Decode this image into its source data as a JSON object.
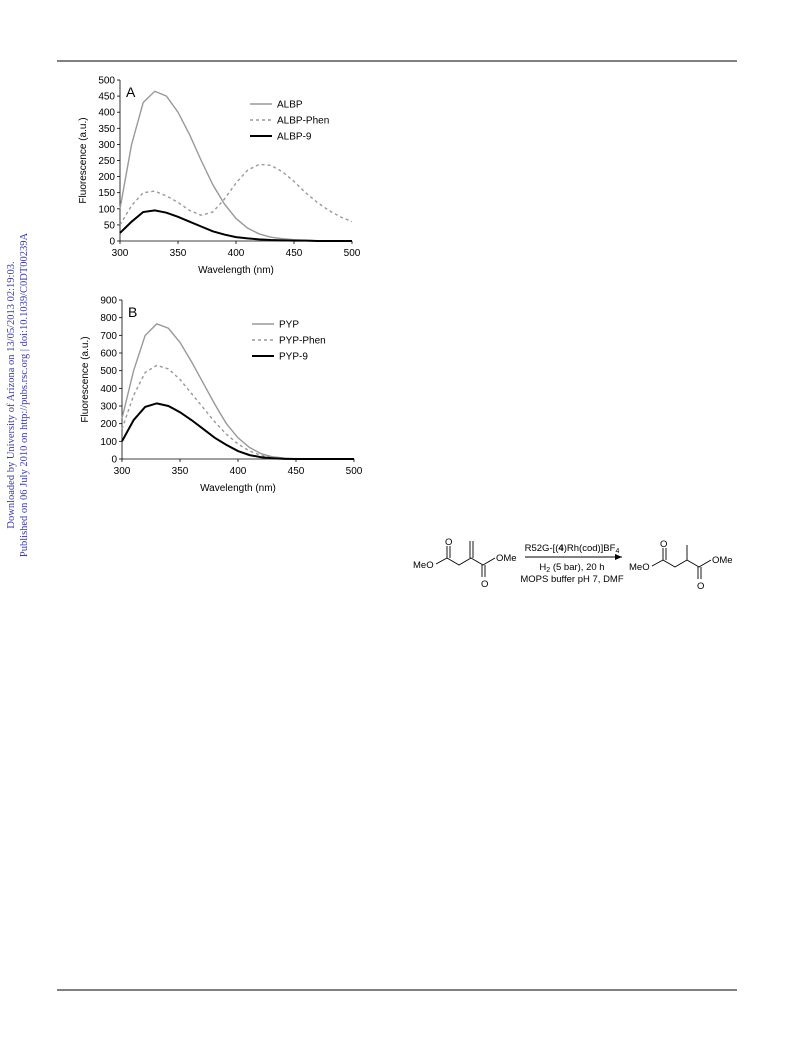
{
  "sidebar": [
    "Downloaded by University of Arizona on 13/05/2013 02:19:03.",
    "Published on 06 July 2010 on http://pubs.rsc.org | doi:10.1039/C0DT00239A"
  ],
  "chart_data": [
    {
      "type": "line",
      "annotation": "A",
      "x_label": "Wavelength (nm)",
      "y_label": "Fluorescence (a.u.)",
      "x": [
        300,
        310,
        320,
        330,
        340,
        350,
        360,
        370,
        380,
        390,
        400,
        410,
        420,
        430,
        440,
        450,
        460,
        470,
        480,
        490,
        500
      ],
      "series": [
        {
          "name": "ALBP",
          "color": "#999999",
          "dash": false,
          "values": [
            100,
            300,
            430,
            465,
            450,
            400,
            330,
            250,
            175,
            115,
            70,
            40,
            22,
            12,
            7,
            4,
            2,
            1,
            1,
            0,
            0
          ]
        },
        {
          "name": "ALBP-Phen",
          "color": "#999999",
          "dash": true,
          "values": [
            50,
            110,
            150,
            155,
            140,
            120,
            95,
            80,
            90,
            130,
            180,
            220,
            238,
            235,
            215,
            185,
            150,
            120,
            95,
            75,
            60
          ]
        },
        {
          "name": "ALBP-9",
          "color": "#000000",
          "dash": false,
          "values": [
            25,
            60,
            90,
            95,
            88,
            75,
            60,
            45,
            30,
            20,
            12,
            8,
            5,
            3,
            2,
            1,
            1,
            0,
            0,
            0,
            0
          ]
        }
      ],
      "xlim": [
        300,
        500
      ],
      "xticks": [
        300,
        350,
        400,
        450,
        500
      ],
      "ylim": [
        0,
        500
      ],
      "yticks": [
        0,
        50,
        100,
        150,
        200,
        250,
        300,
        350,
        400,
        450,
        500
      ],
      "grid": false,
      "legend": "upper right"
    },
    {
      "type": "line",
      "annotation": "B",
      "x_label": "Wavelength (nm)",
      "y_label": "Fluorescence (a.u.)",
      "x": [
        300,
        310,
        320,
        330,
        340,
        350,
        360,
        370,
        380,
        390,
        400,
        410,
        420,
        430,
        440,
        450,
        460,
        470,
        480,
        490,
        500
      ],
      "series": [
        {
          "name": "PYP",
          "color": "#999999",
          "dash": false,
          "values": [
            230,
            500,
            700,
            765,
            740,
            660,
            550,
            430,
            310,
            200,
            120,
            65,
            30,
            12,
            5,
            2,
            1,
            0,
            0,
            0,
            0
          ]
        },
        {
          "name": "PYP-Phen",
          "color": "#999999",
          "dash": true,
          "values": [
            170,
            360,
            490,
            530,
            510,
            450,
            370,
            290,
            210,
            140,
            85,
            45,
            20,
            8,
            3,
            1,
            0,
            0,
            0,
            0,
            0
          ]
        },
        {
          "name": "PYP-9",
          "color": "#000000",
          "dash": false,
          "values": [
            100,
            220,
            295,
            315,
            300,
            265,
            220,
            170,
            120,
            80,
            45,
            22,
            10,
            4,
            1,
            0,
            0,
            0,
            0,
            0,
            0
          ]
        }
      ],
      "xlim": [
        300,
        500
      ],
      "xticks": [
        300,
        350,
        400,
        450,
        500
      ],
      "ylim": [
        0,
        900
      ],
      "yticks": [
        0,
        100,
        200,
        300,
        400,
        500,
        600,
        700,
        800,
        900
      ],
      "grid": false,
      "legend": "upper right"
    }
  ],
  "scheme": {
    "substrate": {
      "left": "MeO",
      "right": "OMe",
      "top_o": "O",
      "bottom_o": "O"
    },
    "reagent": [
      "R52G-[(",
      "4",
      ")Rh(cod)]BF",
      "4"
    ],
    "conditions": [
      [
        "H",
        "2",
        " (5 bar), 20 h"
      ],
      [
        "MOPS buffer pH 7, DMF"
      ]
    ],
    "product": {
      "left": "MeO",
      "right": "OMe",
      "top_o": "O",
      "bottom_o": "O"
    }
  }
}
